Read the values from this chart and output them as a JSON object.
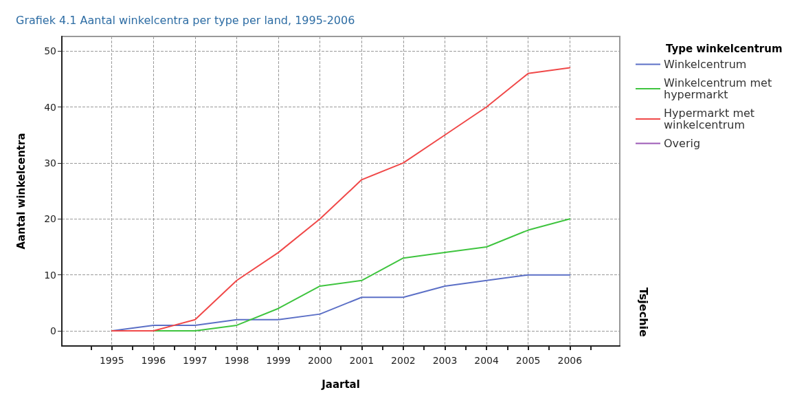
{
  "chart_data": {
    "type": "line",
    "title": "Grafiek 4.1 Aantal winkelcentra per type per land, 1995-2006",
    "xlabel": "Jaartal",
    "ylabel": "Aantal winkelcentra",
    "legend_title": "Type winkelcentrum",
    "annotations": [
      "Tsjechie"
    ],
    "x": [
      1995,
      1996,
      1997,
      1998,
      1999,
      2000,
      2001,
      2002,
      2003,
      2004,
      2005,
      2006
    ],
    "series": [
      {
        "name": "Winkelcentrum",
        "color": "#5b6fc6",
        "values": [
          0,
          1,
          1,
          2,
          2,
          3,
          6,
          6,
          8,
          9,
          10,
          10
        ]
      },
      {
        "name": "Winkelcentrum met hypermarkt",
        "color": "#3ec43e",
        "values": [
          0,
          0,
          0,
          1,
          4,
          8,
          9,
          13,
          14,
          15,
          18,
          20
        ]
      },
      {
        "name": "Hypermarkt met winkelcentrum",
        "color": "#f04848",
        "values": [
          0,
          0,
          2,
          9,
          14,
          20,
          27,
          30,
          35,
          40,
          46,
          47
        ]
      },
      {
        "name": "Overig",
        "color": "#9b59b6",
        "values": [
          null,
          null,
          null,
          null,
          null,
          null,
          null,
          null,
          null,
          null,
          null,
          null
        ]
      }
    ],
    "xlim": [
      1993.8,
      2007.2
    ],
    "xticks": [
      {
        "value": 1994.5,
        "label": null
      },
      1995,
      {
        "value": 1995.5,
        "label": null
      },
      1996,
      {
        "value": 1996.5,
        "label": null
      },
      1997,
      {
        "value": 1997.5,
        "label": null
      },
      1998,
      {
        "value": 1998.5,
        "label": null
      },
      1999,
      {
        "value": 1999.5,
        "label": null
      },
      2000,
      {
        "value": 2000.5,
        "label": null
      },
      2001,
      {
        "value": 2001.5,
        "label": null
      },
      2002,
      {
        "value": 2002.5,
        "label": null
      },
      2003,
      {
        "value": 2003.5,
        "label": null
      },
      2004,
      {
        "value": 2004.5,
        "label": null
      },
      2005,
      {
        "value": 2005.5,
        "label": null
      },
      2006,
      {
        "value": 2006.5,
        "label": null
      }
    ],
    "ylim": [
      -2.7,
      52.6
    ],
    "yticks": [
      0,
      10,
      20,
      30,
      40,
      50
    ],
    "grid": true,
    "legend": "right",
    "marker": "none",
    "line_style": "solid"
  }
}
